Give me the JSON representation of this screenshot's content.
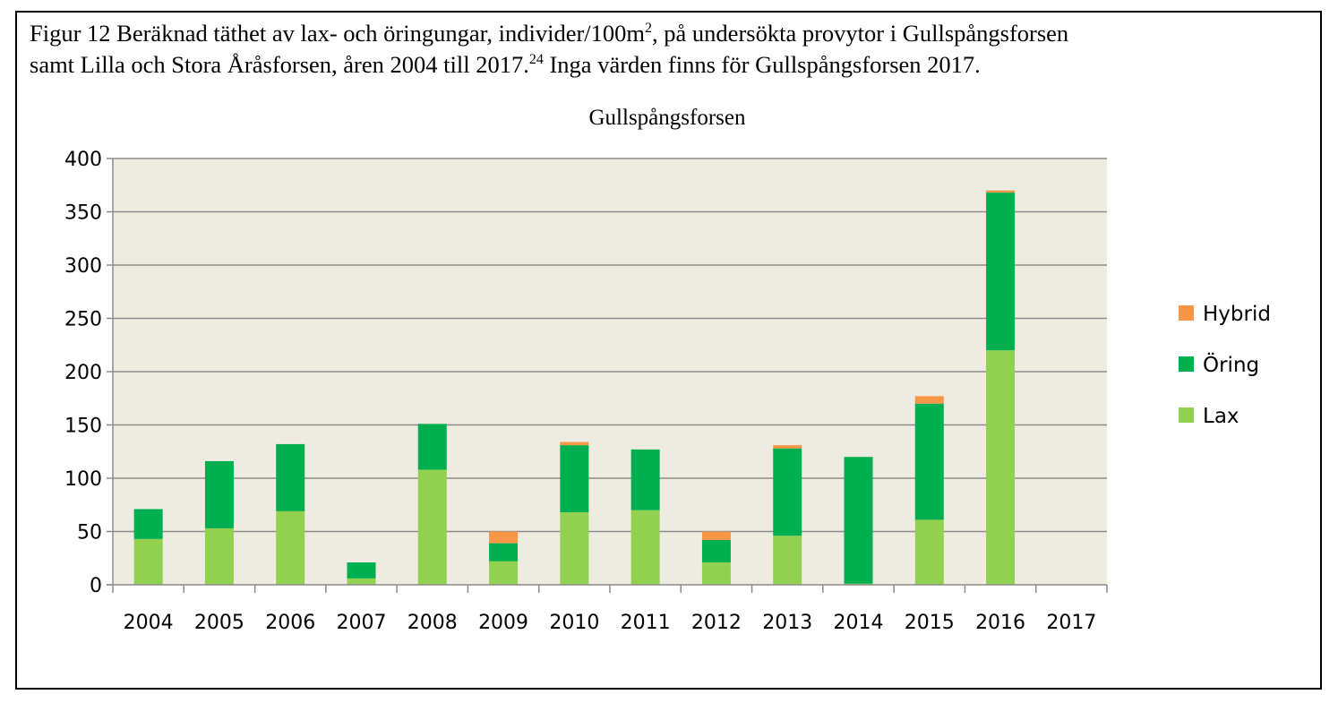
{
  "figure": {
    "caption_line1": "Figur 12 Beräknad täthet av lax- och öringungar, individer/100m",
    "caption_sup1": "2",
    "caption_line1_tail": ", på undersökta provytor i Gullspångsforsen",
    "caption_line2": "samt Lilla och Stora Åråsforsen, åren 2004 till 2017.",
    "caption_sup2": "24",
    "caption_line2_tail": " Inga värden finns för Gullspångsforsen 2017."
  },
  "chart_data": {
    "type": "bar",
    "stacked": true,
    "title": "Gullspångsforsen",
    "xlabel": "",
    "ylabel": "",
    "ylim": [
      0,
      400
    ],
    "yticks": [
      0,
      50,
      100,
      150,
      200,
      250,
      300,
      350,
      400
    ],
    "grid": true,
    "legend_position": "right",
    "background": "#eeebe1",
    "categories": [
      "2004",
      "2005",
      "2006",
      "2007",
      "2008",
      "2009",
      "2010",
      "2011",
      "2012",
      "2013",
      "2014",
      "2015",
      "2016",
      "2017"
    ],
    "series": [
      {
        "name": "Lax",
        "color": "#92d050",
        "values": [
          43,
          53,
          69,
          6,
          108,
          22,
          68,
          70,
          21,
          46,
          1,
          61,
          220,
          0
        ]
      },
      {
        "name": "Öring",
        "color": "#00b050",
        "values": [
          28,
          63,
          63,
          15,
          43,
          17,
          63,
          57,
          21,
          82,
          119,
          109,
          148,
          0
        ]
      },
      {
        "name": "Hybrid",
        "color": "#f79646",
        "values": [
          0,
          0,
          0,
          0,
          0,
          11,
          3,
          0,
          8,
          3,
          0,
          7,
          2,
          0
        ]
      }
    ],
    "legend_order": [
      "Hybrid",
      "Öring",
      "Lax"
    ]
  }
}
